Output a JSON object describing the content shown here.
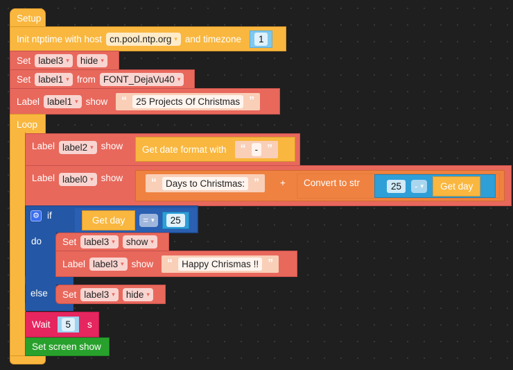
{
  "setup": {
    "label": "Setup"
  },
  "init": {
    "prefix": "Init ntptime with host",
    "host": "cn.pool.ntp.org",
    "mid": "and timezone",
    "timezone": "1"
  },
  "set_hide": {
    "kw": "Set",
    "target": "label3",
    "action": "hide"
  },
  "set_font": {
    "kw": "Set",
    "target": "label1",
    "mid": "from",
    "font": "FONT_DejaVu40"
  },
  "label1_show": {
    "kw": "Label",
    "target": "label1",
    "mid": "show",
    "text": "25 Projects Of Christmas"
  },
  "loop": {
    "label": "Loop"
  },
  "label2_show": {
    "kw": "Label",
    "target": "label2",
    "mid": "show",
    "fn": "Get date format with",
    "sep": "-"
  },
  "label0_show": {
    "kw": "Label",
    "target": "label0",
    "mid": "show",
    "text": "Days to Christmas:",
    "plus": "+",
    "convert": "Convert to str",
    "num": "25",
    "op": "-",
    "getday": "Get day"
  },
  "if_block": {
    "if": "if",
    "getday": "Get day",
    "op": "=",
    "value": "25",
    "do": "do",
    "else": "else"
  },
  "do_set": {
    "kw": "Set",
    "target": "label3",
    "action": "show"
  },
  "do_label": {
    "kw": "Label",
    "target": "label3",
    "mid": "show",
    "text": "Happy Chrismas !!"
  },
  "else_set": {
    "kw": "Set",
    "target": "label3",
    "action": "hide"
  },
  "wait": {
    "kw": "Wait",
    "value": "5",
    "unit": "s"
  },
  "screen": {
    "label": "Set screen show"
  },
  "quote_open": "“",
  "quote_close": "”",
  "caret": "▾",
  "gear": "⚙"
}
